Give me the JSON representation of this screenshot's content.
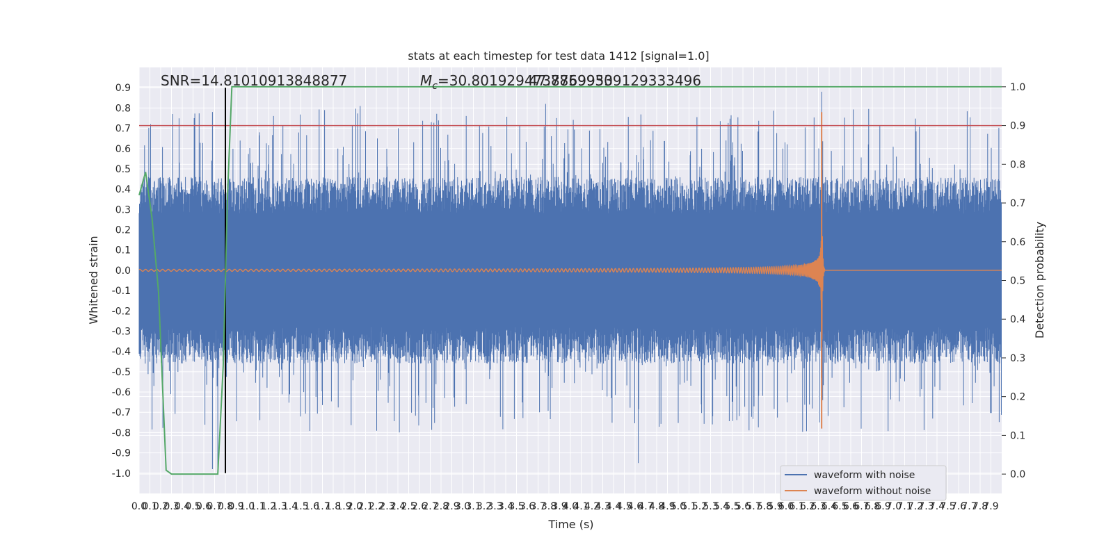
{
  "chart_data": {
    "type": "line",
    "title": "stats at each timestep for test data 1412 [signal=1.0]",
    "xlabel": "Time (s)",
    "ylabel": "Whitened strain",
    "y2label": "Detection probability",
    "xlim": [
      0,
      8.0
    ],
    "ylim": [
      -1.1,
      1.0
    ],
    "y2lim": [
      -0.05,
      1.05
    ],
    "x_ticks": [
      "0.0",
      "0.1",
      "0.2",
      "0.3",
      "0.4",
      "0.5",
      "0.6",
      "0.7",
      "0.8",
      "0.9",
      "1.0",
      "1.1",
      "1.2",
      "1.3",
      "1.4",
      "1.5",
      "1.6",
      "1.7",
      "1.8",
      "1.9",
      "2.0",
      "2.1",
      "2.2",
      "2.3",
      "2.4",
      "2.5",
      "2.6",
      "2.7",
      "2.8",
      "2.9",
      "3.0",
      "3.1",
      "3.2",
      "3.3",
      "3.4",
      "3.5",
      "3.6",
      "3.7",
      "3.8",
      "3.9",
      "4.0",
      "4.1",
      "4.2",
      "4.3",
      "4.4",
      "4.5",
      "4.6",
      "4.7",
      "4.8",
      "4.9",
      "5.0",
      "5.1",
      "5.2",
      "5.3",
      "5.4",
      "5.5",
      "5.6",
      "5.7",
      "5.8",
      "5.9",
      "6.0",
      "6.1",
      "6.2",
      "6.3",
      "6.4",
      "6.5",
      "6.6",
      "6.7",
      "6.8",
      "6.9",
      "7.0",
      "7.1",
      "7.2",
      "7.3",
      "7.4",
      "7.5",
      "7.6",
      "7.7",
      "7.8",
      "7.9"
    ],
    "y_ticks": [
      "0.9",
      "0.8",
      "0.7",
      "0.6",
      "0.5",
      "0.4",
      "0.3",
      "0.2",
      "0.1",
      "0.0",
      "-0.1",
      "-0.2",
      "-0.3",
      "-0.4",
      "-0.5",
      "-0.6",
      "-0.7",
      "-0.8",
      "-0.9",
      "-1.0"
    ],
    "y2_ticks": [
      "1.0",
      "0.9",
      "0.8",
      "0.7",
      "0.6",
      "0.5",
      "0.4",
      "0.3",
      "0.2",
      "0.1",
      "0.0"
    ],
    "annotations": {
      "snr": "SNR=14.81010913848877",
      "mc": "M_c=30.8019294738769953",
      "mc2": "47.78599309129333496"
    },
    "threshold_y2": 0.9,
    "marker_x": 0.8,
    "merger_x": 6.33,
    "noise_envelope": {
      "upper_typical": 0.45,
      "lower_typical": -0.45,
      "peak_max": 0.88,
      "peak_min": -0.95
    },
    "detection_probability": {
      "x": [
        0.0,
        0.06,
        0.12,
        0.18,
        0.25,
        0.3,
        0.35,
        0.4,
        0.5,
        0.6,
        0.68,
        0.73,
        0.78,
        0.82,
        0.86,
        1.0,
        2.0,
        4.0,
        6.0,
        8.0
      ],
      "y": [
        0.72,
        0.78,
        0.66,
        0.47,
        0.01,
        0.0,
        0.0,
        0.0,
        0.0,
        0.0,
        0.0,
        0.0,
        0.28,
        0.72,
        1.0,
        1.0,
        1.0,
        1.0,
        1.0,
        1.0
      ]
    },
    "legend": [
      "waveform with noise",
      "waveform without noise"
    ],
    "colors": {
      "noise": "#4c72b0",
      "clean": "#dd8452",
      "prob": "#55a868",
      "threshold": "#c44e52",
      "marker": "#000000",
      "bg": "#eaeaf2"
    }
  }
}
